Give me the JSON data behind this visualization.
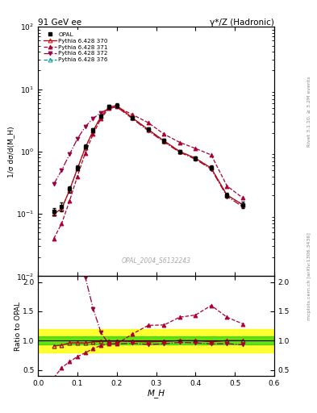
{
  "title_left": "91 GeV ee",
  "title_right": "γ*/Z (Hadronic)",
  "ylabel_main": "1/σ dσ/d(M_H)",
  "ylabel_ratio": "Ratio to OPAL",
  "xlabel": "M_H",
  "watermark": "OPAL_2004_S6132243",
  "right_label_top": "Rivet 3.1.10, ≥ 3.2M events",
  "right_label_bot": "mcplots.cern.ch [arXiv:1306.3436]",
  "opal_x": [
    0.04,
    0.06,
    0.08,
    0.1,
    0.12,
    0.14,
    0.16,
    0.18,
    0.2,
    0.24,
    0.28,
    0.32,
    0.36,
    0.4,
    0.44,
    0.48,
    0.52
  ],
  "opal_y": [
    0.11,
    0.13,
    0.25,
    0.55,
    1.2,
    2.2,
    3.7,
    5.2,
    5.5,
    3.5,
    2.3,
    1.5,
    1.0,
    0.78,
    0.55,
    0.2,
    0.14
  ],
  "opal_yerr": [
    0.015,
    0.02,
    0.03,
    0.05,
    0.09,
    0.16,
    0.25,
    0.35,
    0.38,
    0.22,
    0.15,
    0.1,
    0.07,
    0.055,
    0.04,
    0.018,
    0.015
  ],
  "p370_x": [
    0.04,
    0.06,
    0.08,
    0.1,
    0.12,
    0.14,
    0.16,
    0.18,
    0.2,
    0.24,
    0.28,
    0.32,
    0.36,
    0.4,
    0.44,
    0.48,
    0.52
  ],
  "p370_y": [
    0.1,
    0.12,
    0.24,
    0.53,
    1.15,
    2.15,
    3.65,
    5.15,
    5.45,
    3.45,
    2.25,
    1.48,
    1.0,
    0.78,
    0.54,
    0.2,
    0.14
  ],
  "p371_x": [
    0.04,
    0.06,
    0.08,
    0.1,
    0.12,
    0.14,
    0.16,
    0.18,
    0.2,
    0.24,
    0.28,
    0.32,
    0.36,
    0.4,
    0.44,
    0.48,
    0.52
  ],
  "p371_y": [
    0.04,
    0.07,
    0.16,
    0.4,
    0.95,
    1.9,
    3.4,
    4.9,
    5.2,
    3.9,
    2.9,
    1.9,
    1.4,
    1.12,
    0.88,
    0.28,
    0.18
  ],
  "p372_x": [
    0.04,
    0.06,
    0.08,
    0.1,
    0.12,
    0.14,
    0.16,
    0.18,
    0.2,
    0.24,
    0.28,
    0.32,
    0.36,
    0.4,
    0.44,
    0.48,
    0.52
  ],
  "p372_y": [
    0.3,
    0.5,
    0.9,
    1.6,
    2.5,
    3.4,
    4.2,
    4.9,
    5.2,
    3.35,
    2.15,
    1.42,
    0.97,
    0.75,
    0.52,
    0.19,
    0.13
  ],
  "p376_x": [
    0.04,
    0.06,
    0.08,
    0.1,
    0.12,
    0.14,
    0.16,
    0.18,
    0.2,
    0.24,
    0.28,
    0.32,
    0.36,
    0.4,
    0.44,
    0.48,
    0.52
  ],
  "p376_y": [
    0.1,
    0.12,
    0.24,
    0.53,
    1.15,
    2.15,
    3.65,
    5.15,
    5.45,
    3.45,
    2.25,
    1.48,
    1.0,
    0.78,
    0.54,
    0.2,
    0.14
  ],
  "color_opal": "#000000",
  "color_p370": "#cc0000",
  "color_p371": "#aa0033",
  "color_p372": "#990044",
  "color_p376": "#009999",
  "ylim_main": [
    0.01,
    100
  ],
  "ylim_ratio": [
    0.4,
    2.1
  ],
  "xlim": [
    0.0,
    0.6
  ],
  "green_band": [
    0.93,
    1.07
  ],
  "yellow_band": [
    0.8,
    1.2
  ],
  "ratio_yticks": [
    0.5,
    1.0,
    1.5,
    2.0
  ]
}
